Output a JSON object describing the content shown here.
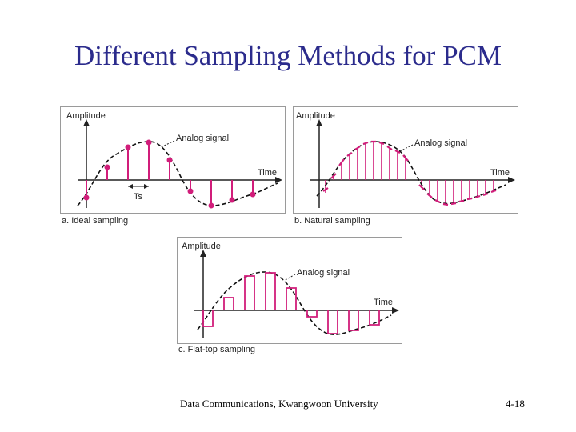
{
  "slide": {
    "title": "Different Sampling Methods for PCM",
    "footer_left": "Data Communications, Kwangwoon University",
    "footer_right": "4-18"
  },
  "colors": {
    "title": "#2b2b8c",
    "sample": "#d11d7a",
    "signal": "#111111",
    "panel_border": "#9a9a9a"
  },
  "panels": {
    "ideal": {
      "amplitude_label": "Amplitude",
      "time_label": "Time",
      "signal_label": "Analog signal",
      "period_label": "Ts",
      "caption": "a. Ideal sampling"
    },
    "natural": {
      "amplitude_label": "Amplitude",
      "time_label": "Time",
      "signal_label": "Analog signal",
      "caption": "b. Natural sampling"
    },
    "flattop": {
      "amplitude_label": "Amplitude",
      "time_label": "Time",
      "signal_label": "Analog signal",
      "caption": "c. Flat-top sampling"
    }
  }
}
